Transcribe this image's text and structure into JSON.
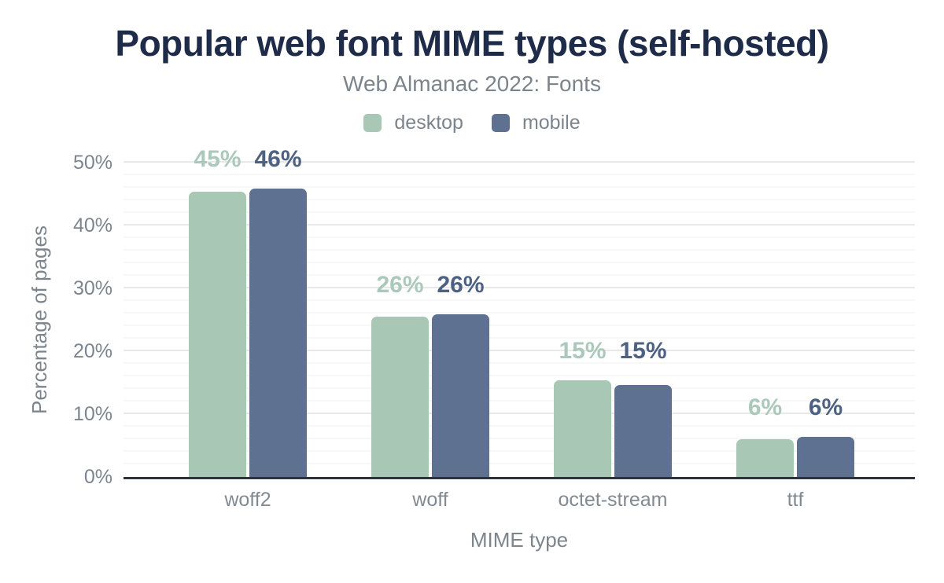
{
  "header": {
    "title": "Popular web font MIME types (self-hosted)",
    "subtitle": "Web Almanac 2022: Fonts"
  },
  "legend": {
    "items": [
      {
        "label": "desktop",
        "color": "#a8c7b5"
      },
      {
        "label": "mobile",
        "color": "#5f7190"
      }
    ]
  },
  "chart_data": {
    "type": "bar",
    "title": "Popular web font MIME types (self-hosted)",
    "subtitle": "Web Almanac 2022: Fonts",
    "xlabel": "MIME type",
    "ylabel": "Percentage of pages",
    "categories": [
      "woff2",
      "woff",
      "octet-stream",
      "ttf"
    ],
    "series": [
      {
        "name": "desktop",
        "color": "#a8c7b5",
        "label_color": "#aac9ba",
        "values": [
          45.4,
          25.5,
          15.4,
          6.0
        ],
        "value_labels": [
          "45%",
          "26%",
          "15%",
          "6%"
        ]
      },
      {
        "name": "mobile",
        "color": "#5f7190",
        "label_color": "#4d6183",
        "values": [
          45.9,
          25.9,
          14.6,
          6.4
        ],
        "value_labels": [
          "46%",
          "26%",
          "15%",
          "6%"
        ]
      }
    ],
    "ylim": [
      0,
      50
    ],
    "y_ticks": [
      {
        "value": 0,
        "label": "0%"
      },
      {
        "value": 10,
        "label": "10%"
      },
      {
        "value": 20,
        "label": "20%"
      },
      {
        "value": 30,
        "label": "30%"
      },
      {
        "value": 40,
        "label": "40%"
      },
      {
        "value": 50,
        "label": "50%"
      }
    ],
    "minor_tick_step": 2,
    "grid": true,
    "legend_position": "top"
  },
  "colors": {
    "title": "#1e2b49",
    "subtitle": "#7c848b",
    "tick": "#7b8590",
    "cat": "#828a91",
    "axis_title": "#7c858c",
    "axis_line": "#2e323a",
    "grid_major": "#e9e9e9",
    "grid_minor": "#f7f7f7"
  }
}
